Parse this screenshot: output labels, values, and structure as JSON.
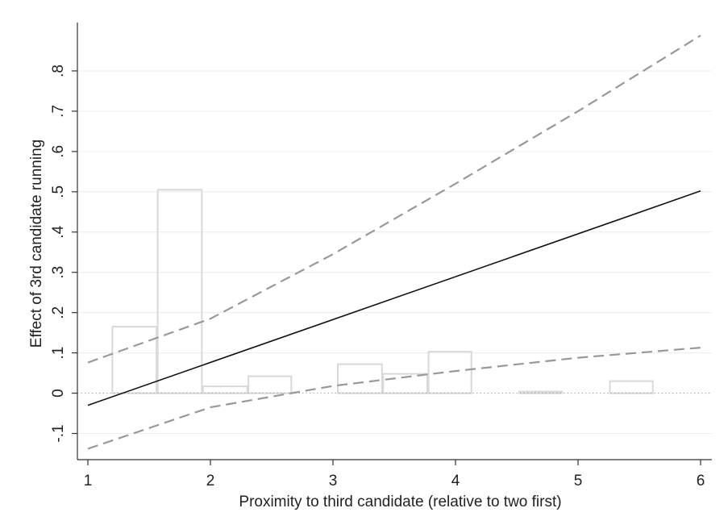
{
  "chart_data": {
    "type": "line",
    "xlabel": "Proximity to third candidate (relative to two first)",
    "ylabel": "Effect of 3rd candidate running",
    "xlim": [
      1,
      6
    ],
    "ylim": [
      -0.165,
      0.92
    ],
    "x_ticks": [
      1,
      2,
      3,
      4,
      5,
      6
    ],
    "x_tick_labels": [
      "1",
      "2",
      "3",
      "4",
      "5",
      "6"
    ],
    "y_ticks": [
      -0.1,
      0,
      0.1,
      0.2,
      0.3,
      0.4,
      0.5,
      0.6,
      0.7,
      0.8
    ],
    "y_tick_labels": [
      "-.1",
      "0",
      ".1",
      ".2",
      ".3",
      ".4",
      ".5",
      ".6",
      ".7",
      ".8"
    ],
    "grid": "horizontal",
    "reference_line": {
      "y": 0,
      "style": "dotted"
    },
    "colors": {
      "estimate": "#111111",
      "ci": "#999999",
      "histogram": "#d9d9d9",
      "grid": "#ececec",
      "axis": "#333333"
    },
    "histogram": {
      "bins": [
        {
          "x0": 1.2,
          "x1": 1.56,
          "height": 0.165
        },
        {
          "x0": 1.57,
          "x1": 1.93,
          "height": 0.505
        },
        {
          "x0": 1.94,
          "x1": 2.3,
          "height": 0.017
        },
        {
          "x0": 2.31,
          "x1": 2.66,
          "height": 0.042
        },
        {
          "x0": 3.04,
          "x1": 3.4,
          "height": 0.072
        },
        {
          "x0": 3.41,
          "x1": 3.77,
          "height": 0.048
        },
        {
          "x0": 3.78,
          "x1": 4.13,
          "height": 0.103
        },
        {
          "x0": 4.52,
          "x1": 4.87,
          "height": 0.004
        },
        {
          "x0": 5.26,
          "x1": 5.61,
          "height": 0.03
        }
      ]
    },
    "series": [
      {
        "style": "solid",
        "x": [
          1,
          6
        ],
        "y": [
          -0.03,
          0.502
        ]
      },
      {
        "style": "dashed",
        "x": [
          1,
          2,
          3,
          4,
          5,
          6
        ],
        "y": [
          0.076,
          0.185,
          0.345,
          0.52,
          0.7,
          0.888
        ]
      },
      {
        "style": "dashed",
        "x": [
          1,
          2,
          3,
          4,
          5,
          6
        ],
        "y": [
          -0.138,
          -0.035,
          0.018,
          0.055,
          0.088,
          0.113
        ]
      }
    ]
  }
}
